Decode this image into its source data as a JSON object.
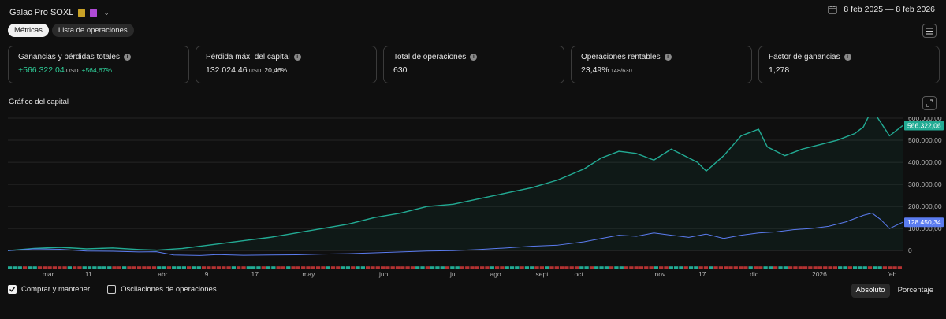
{
  "header": {
    "title": "Galac Pro SOXL",
    "badge_colors": [
      "#c9a227",
      "#b04bd6"
    ]
  },
  "date_range": {
    "icon": "calendar-icon",
    "text": "8 feb 2025 — 8 feb 2026"
  },
  "tabs": [
    {
      "label": "Métricas",
      "active": true
    },
    {
      "label": "Lista de operaciones",
      "active": false
    }
  ],
  "cards": [
    {
      "title": "Ganancias y pérdidas totales",
      "value": "+566.322,04",
      "unit": "USD",
      "extra": "+564,67%",
      "positive": true
    },
    {
      "title": "Pérdida máx. del capital",
      "value": "132.024,46",
      "unit": "USD",
      "extra": "20,46%",
      "positive": false
    },
    {
      "title": "Total de operaciones",
      "value": "630",
      "unit": "",
      "extra": "",
      "positive": false
    },
    {
      "title": "Operaciones rentables",
      "value": "23,49%",
      "unit": "",
      "extra": "148/630",
      "positive": false
    },
    {
      "title": "Factor de ganancias",
      "value": "1,278",
      "unit": "",
      "extra": "",
      "positive": false
    }
  ],
  "info_glyph": "i",
  "section_title": "Gráfico del capital",
  "legend": {
    "buy_hold": {
      "label": "Comprar y mantener",
      "checked": true
    },
    "trade_swings": {
      "label": "Oscilaciones de operaciones",
      "checked": false
    }
  },
  "scale_toggle": {
    "absolute": "Absoluto",
    "percent": "Porcentaje",
    "active": "absolute"
  },
  "colors": {
    "equity": "#22ab94",
    "buy_hold": "#5b7cf0",
    "negative_bar": "#b33232",
    "grid": "#262626",
    "text": "#b2b2b2"
  },
  "chart_data": {
    "type": "line",
    "ylim": [
      -10000,
      650000
    ],
    "y_ticks": [
      0,
      100000,
      200000,
      300000,
      400000,
      500000,
      600000
    ],
    "y_tick_labels": [
      "0",
      "100.000,00",
      "200.000,00",
      "300.000,00",
      "400.000,00",
      "500.000,00",
      "600.000,00"
    ],
    "x_tick_labels": [
      "mar",
      "11",
      "abr",
      "9",
      "17",
      "may",
      "jun",
      "jul",
      "ago",
      "sept",
      "oct",
      "nov",
      "17",
      "dic",
      "2026",
      "feb"
    ],
    "x_tick_positions": [
      0.045,
      0.09,
      0.173,
      0.222,
      0.276,
      0.336,
      0.42,
      0.498,
      0.545,
      0.597,
      0.638,
      0.729,
      0.776,
      0.834,
      0.907,
      0.988
    ],
    "series": [
      {
        "name": "Capital",
        "color": "#22ab94",
        "last_value_label": "566.322,06",
        "x": [
          0,
          0.03,
          0.06,
          0.09,
          0.12,
          0.15,
          0.17,
          0.2,
          0.22,
          0.24,
          0.27,
          0.3,
          0.33,
          0.36,
          0.39,
          0.42,
          0.45,
          0.48,
          0.51,
          0.54,
          0.57,
          0.6,
          0.63,
          0.66,
          0.68,
          0.7,
          0.72,
          0.74,
          0.76,
          0.78,
          0.79,
          0.8,
          0.82,
          0.84,
          0.86,
          0.87,
          0.89,
          0.91,
          0.93,
          0.95,
          0.97,
          0.98,
          0.99,
          1.0,
          1.01,
          1.025
        ],
        "y": [
          0,
          10000,
          15000,
          8000,
          12000,
          5000,
          2000,
          10000,
          20000,
          30000,
          45000,
          60000,
          80000,
          100000,
          120000,
          150000,
          170000,
          200000,
          210000,
          235000,
          260000,
          285000,
          320000,
          370000,
          420000,
          450000,
          440000,
          410000,
          460000,
          420000,
          400000,
          360000,
          430000,
          520000,
          550000,
          470000,
          430000,
          460000,
          480000,
          500000,
          530000,
          560000,
          640000,
          580000,
          520000,
          566322
        ]
      },
      {
        "name": "Comprar y mantener",
        "color": "#5b7cf0",
        "last_value_label": "128.450,34",
        "x": [
          0,
          0.03,
          0.06,
          0.09,
          0.12,
          0.15,
          0.17,
          0.19,
          0.22,
          0.24,
          0.27,
          0.3,
          0.33,
          0.36,
          0.39,
          0.42,
          0.45,
          0.48,
          0.51,
          0.54,
          0.57,
          0.6,
          0.63,
          0.66,
          0.68,
          0.7,
          0.72,
          0.74,
          0.76,
          0.78,
          0.8,
          0.82,
          0.84,
          0.86,
          0.88,
          0.9,
          0.92,
          0.94,
          0.96,
          0.98,
          0.99,
          1.0,
          1.01,
          1.025
        ],
        "y": [
          0,
          8000,
          6000,
          -2000,
          -3000,
          -6000,
          -5000,
          -20000,
          -22000,
          -18000,
          -21000,
          -20000,
          -19000,
          -16000,
          -14000,
          -10000,
          -6000,
          -2000,
          0,
          5000,
          12000,
          20000,
          25000,
          40000,
          55000,
          70000,
          65000,
          80000,
          70000,
          60000,
          75000,
          55000,
          70000,
          80000,
          85000,
          95000,
          100000,
          110000,
          130000,
          160000,
          170000,
          140000,
          100000,
          128450
        ]
      }
    ]
  }
}
